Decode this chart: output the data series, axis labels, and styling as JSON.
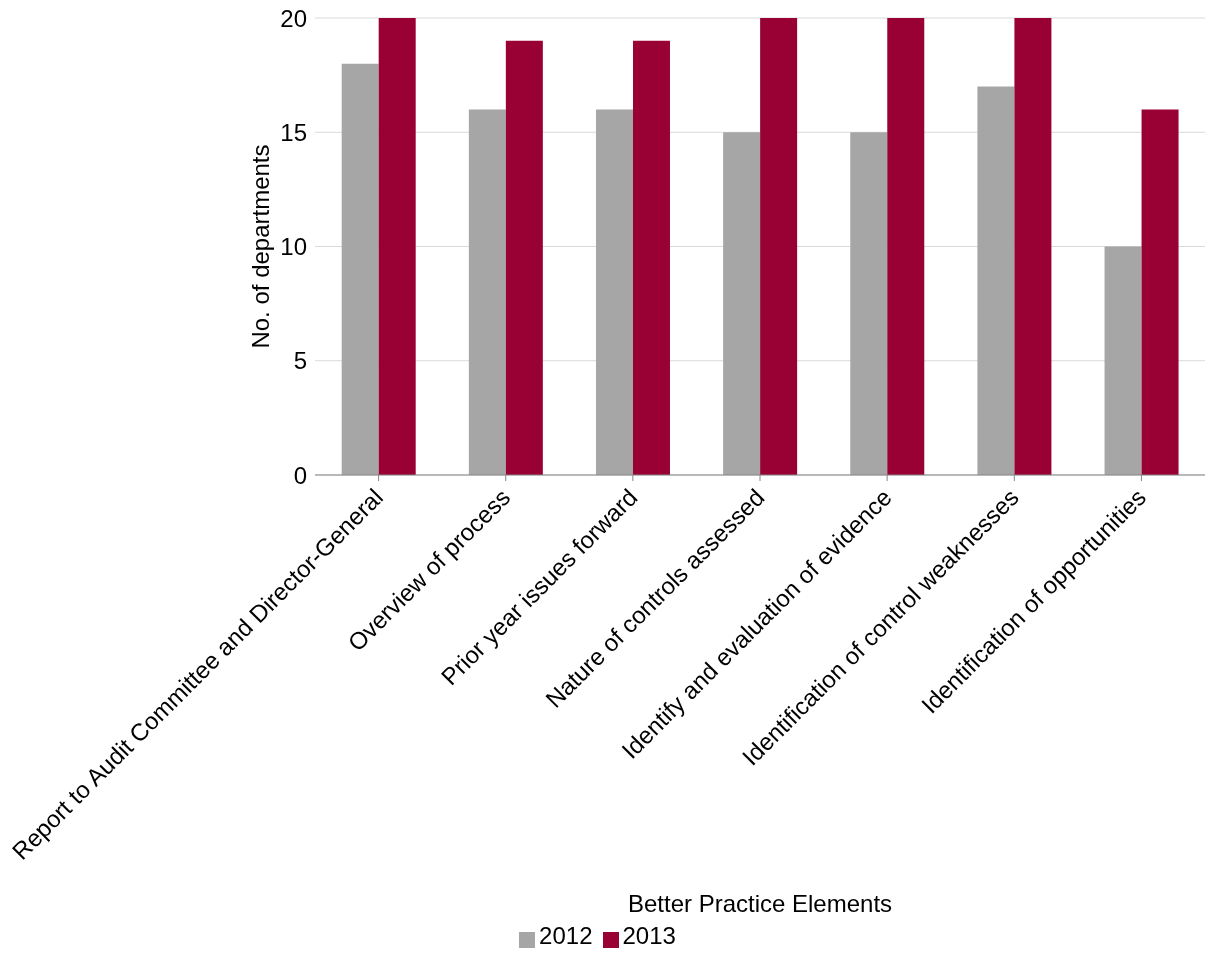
{
  "chart_data": {
    "type": "bar",
    "xlabel": "Better Practice Elements",
    "ylabel": "No. of departments",
    "categories": [
      "Report to Audit Committee and Director-General",
      "Overview of process",
      "Prior year issues forward",
      "Nature of controls assessed",
      "Identify and evaluation of evidence",
      "Identification of control weaknesses",
      "Identification of opportunities"
    ],
    "series": [
      {
        "name": "2012",
        "color": "#a6a6a6",
        "values": [
          18,
          16,
          16,
          15,
          15,
          17,
          10
        ]
      },
      {
        "name": "2013",
        "color": "#990033",
        "values": [
          20,
          19,
          19,
          20,
          20,
          20,
          16
        ]
      }
    ],
    "ylim": [
      0,
      20
    ],
    "yticks": [
      0,
      5,
      10,
      15,
      20
    ],
    "grid": "y",
    "legend": "bottom"
  }
}
